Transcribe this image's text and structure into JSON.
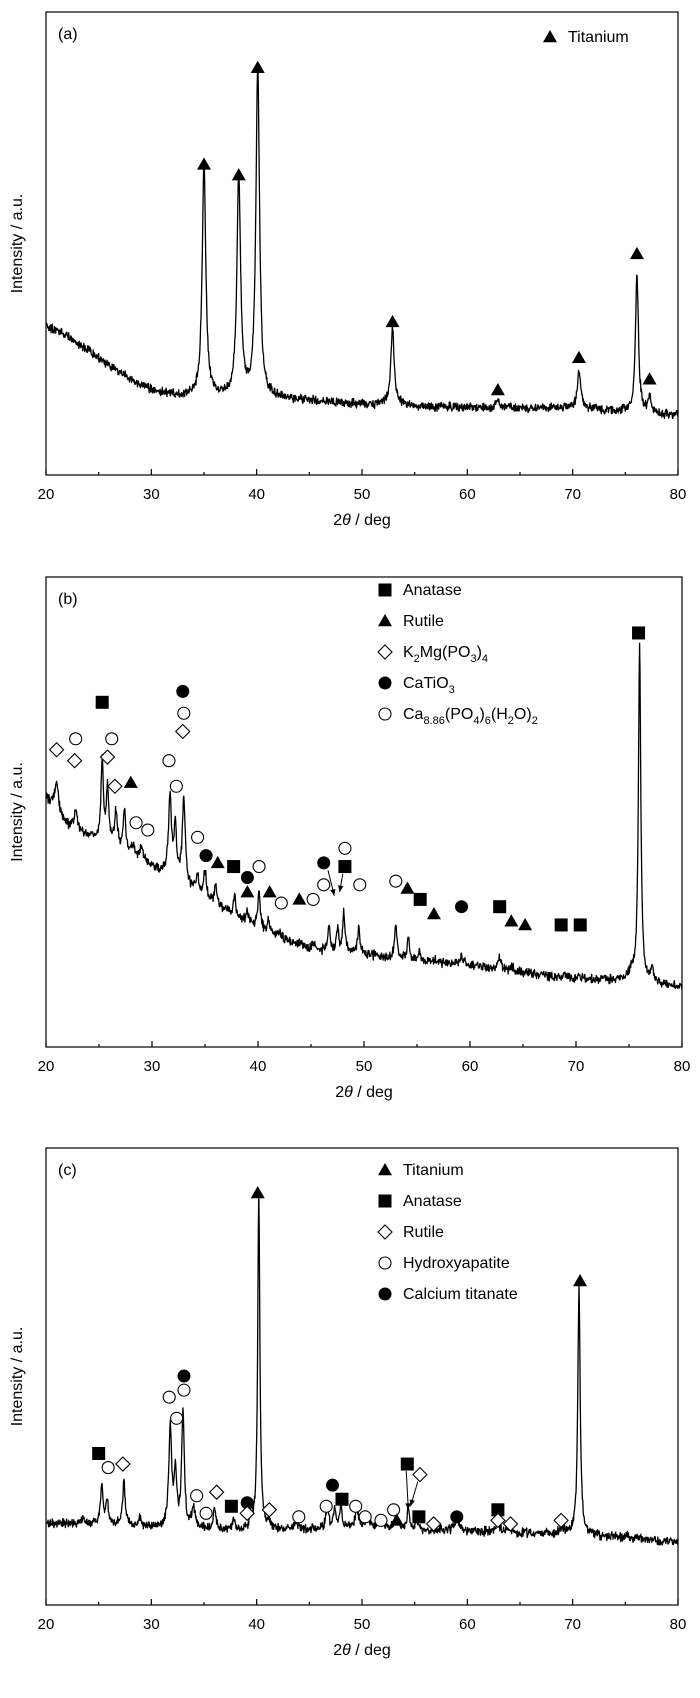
{
  "chart_data": [
    {
      "type": "line",
      "panel_label": "(a)",
      "xlabel_base": "2",
      "xlabel_var": "θ",
      "xlabel_unit": " / deg",
      "ylabel": "Intensity / a.u.",
      "xlim": [
        20,
        80
      ],
      "xticks": [
        "20",
        "30",
        "40",
        "50",
        "60",
        "70",
        "80"
      ],
      "legend": [
        {
          "marker": "filled-triangle",
          "label": "Titanium"
        }
      ],
      "baseline": [
        [
          20,
          0.25
        ],
        [
          22,
          0.22
        ],
        [
          25,
          0.16
        ],
        [
          28,
          0.1
        ],
        [
          30,
          0.07
        ],
        [
          33,
          0.05
        ],
        [
          40,
          0.05
        ],
        [
          50,
          0.03
        ],
        [
          60,
          0.02
        ],
        [
          70,
          0.02
        ],
        [
          80,
          0.0
        ]
      ],
      "peaks": [
        {
          "x": 35.0,
          "h": 0.65,
          "w": 0.3
        },
        {
          "x": 38.3,
          "h": 0.62,
          "w": 0.3
        },
        {
          "x": 40.1,
          "h": 0.92,
          "w": 0.3
        },
        {
          "x": 52.9,
          "h": 0.21,
          "w": 0.3
        },
        {
          "x": 62.9,
          "h": 0.02,
          "w": 0.3
        },
        {
          "x": 70.6,
          "h": 0.1,
          "w": 0.3
        },
        {
          "x": 76.1,
          "h": 0.39,
          "w": 0.25
        },
        {
          "x": 77.3,
          "h": 0.05,
          "w": 0.25
        }
      ],
      "markers": [
        {
          "x": 35.0,
          "y": 0.7,
          "m": "filled-triangle"
        },
        {
          "x": 38.3,
          "y": 0.67,
          "m": "filled-triangle"
        },
        {
          "x": 40.1,
          "y": 0.97,
          "m": "filled-triangle"
        },
        {
          "x": 52.9,
          "y": 0.26,
          "m": "filled-triangle"
        },
        {
          "x": 62.9,
          "y": 0.07,
          "m": "filled-triangle"
        },
        {
          "x": 70.6,
          "y": 0.16,
          "m": "filled-triangle"
        },
        {
          "x": 76.1,
          "y": 0.45,
          "m": "filled-triangle"
        },
        {
          "x": 77.3,
          "y": 0.1,
          "m": "filled-triangle"
        }
      ],
      "arrows": []
    },
    {
      "type": "line",
      "panel_label": "(b)",
      "xlabel_base": "2",
      "xlabel_var": "θ",
      "xlabel_unit": " / deg",
      "ylabel": "Intensity / a.u.",
      "xlim": [
        20,
        80
      ],
      "xticks": [
        "20",
        "30",
        "40",
        "50",
        "60",
        "70",
        "80"
      ],
      "legend": [
        {
          "marker": "filled-square",
          "label": "Anatase"
        },
        {
          "marker": "filled-triangle",
          "label": "Rutile"
        },
        {
          "marker": "open-diamond",
          "parts": [
            [
              "K",
              ""
            ],
            [
              "2",
              "sub"
            ],
            [
              "Mg(PO",
              ""
            ],
            [
              "3",
              "sub"
            ],
            [
              ")",
              ""
            ],
            [
              "4",
              "sub"
            ]
          ]
        },
        {
          "marker": "filled-circle",
          "parts": [
            [
              "CaTiO",
              ""
            ],
            [
              "3",
              "sub"
            ]
          ]
        },
        {
          "marker": "open-circle",
          "parts": [
            [
              "Ca",
              ""
            ],
            [
              "8.86",
              "sub"
            ],
            [
              "(PO",
              ""
            ],
            [
              "4",
              "sub"
            ],
            [
              ")",
              ""
            ],
            [
              "6",
              "sub"
            ],
            [
              "(H",
              ""
            ],
            [
              "2",
              "sub"
            ],
            [
              "O)",
              ""
            ],
            [
              "2",
              "sub"
            ]
          ]
        }
      ],
      "baseline": [
        [
          20,
          0.52
        ],
        [
          22,
          0.44
        ],
        [
          25,
          0.4
        ],
        [
          30,
          0.33
        ],
        [
          35,
          0.24
        ],
        [
          40,
          0.16
        ],
        [
          45,
          0.1
        ],
        [
          50,
          0.09
        ],
        [
          55,
          0.07
        ],
        [
          60,
          0.06
        ],
        [
          65,
          0.04
        ],
        [
          70,
          0.02
        ],
        [
          75,
          0.02
        ],
        [
          80,
          0.0
        ]
      ],
      "peaks": [
        {
          "x": 21.0,
          "h": 0.08,
          "w": 0.3
        },
        {
          "x": 22.8,
          "h": 0.05,
          "w": 0.3
        },
        {
          "x": 25.3,
          "h": 0.22,
          "w": 0.2
        },
        {
          "x": 25.8,
          "h": 0.15,
          "w": 0.2
        },
        {
          "x": 26.6,
          "h": 0.1,
          "w": 0.25
        },
        {
          "x": 27.4,
          "h": 0.12,
          "w": 0.2
        },
        {
          "x": 28.2,
          "h": 0.03,
          "w": 0.3
        },
        {
          "x": 29.0,
          "h": 0.03,
          "w": 0.3
        },
        {
          "x": 31.7,
          "h": 0.22,
          "w": 0.25
        },
        {
          "x": 32.2,
          "h": 0.14,
          "w": 0.2
        },
        {
          "x": 33.0,
          "h": 0.24,
          "w": 0.25
        },
        {
          "x": 34.3,
          "h": 0.05,
          "w": 0.25
        },
        {
          "x": 35.0,
          "h": 0.08,
          "w": 0.2
        },
        {
          "x": 36.0,
          "h": 0.06,
          "w": 0.2
        },
        {
          "x": 37.8,
          "h": 0.05,
          "w": 0.2
        },
        {
          "x": 39.0,
          "h": 0.03,
          "w": 0.2
        },
        {
          "x": 40.1,
          "h": 0.1,
          "w": 0.2
        },
        {
          "x": 41.0,
          "h": 0.03,
          "w": 0.2
        },
        {
          "x": 42.0,
          "h": 0.01,
          "w": 0.3
        },
        {
          "x": 44.0,
          "h": 0.01,
          "w": 0.3
        },
        {
          "x": 45.2,
          "h": 0.02,
          "w": 0.3
        },
        {
          "x": 46.7,
          "h": 0.07,
          "w": 0.2
        },
        {
          "x": 47.5,
          "h": 0.06,
          "w": 0.2
        },
        {
          "x": 48.1,
          "h": 0.11,
          "w": 0.2
        },
        {
          "x": 49.5,
          "h": 0.07,
          "w": 0.2
        },
        {
          "x": 53.0,
          "h": 0.09,
          "w": 0.2
        },
        {
          "x": 54.2,
          "h": 0.06,
          "w": 0.2
        },
        {
          "x": 55.2,
          "h": 0.03,
          "w": 0.2
        },
        {
          "x": 56.8,
          "h": 0.01,
          "w": 0.3
        },
        {
          "x": 59.2,
          "h": 0.02,
          "w": 0.3
        },
        {
          "x": 62.8,
          "h": 0.03,
          "w": 0.3
        },
        {
          "x": 64.0,
          "h": 0.01,
          "w": 0.3
        },
        {
          "x": 69.0,
          "h": 0.01,
          "w": 0.3
        },
        {
          "x": 70.3,
          "h": 0.01,
          "w": 0.3
        },
        {
          "x": 75.2,
          "h": 0.02,
          "w": 0.3
        },
        {
          "x": 76.0,
          "h": 0.92,
          "w": 0.2
        },
        {
          "x": 77.2,
          "h": 0.04,
          "w": 0.2
        }
      ],
      "markers": [
        {
          "x": 21.0,
          "y": 0.65,
          "m": "open-diamond"
        },
        {
          "x": 22.7,
          "y": 0.62,
          "m": "open-diamond"
        },
        {
          "x": 22.8,
          "y": 0.68,
          "m": "open-circle"
        },
        {
          "x": 25.3,
          "y": 0.78,
          "m": "filled-square"
        },
        {
          "x": 25.8,
          "y": 0.63,
          "m": "open-diamond"
        },
        {
          "x": 26.2,
          "y": 0.68,
          "m": "open-circle"
        },
        {
          "x": 26.5,
          "y": 0.55,
          "m": "open-diamond"
        },
        {
          "x": 28.0,
          "y": 0.56,
          "m": "filled-triangle"
        },
        {
          "x": 28.5,
          "y": 0.45,
          "m": "open-circle"
        },
        {
          "x": 29.6,
          "y": 0.43,
          "m": "open-circle"
        },
        {
          "x": 31.6,
          "y": 0.62,
          "m": "open-circle"
        },
        {
          "x": 32.3,
          "y": 0.55,
          "m": "open-circle"
        },
        {
          "x": 32.9,
          "y": 0.81,
          "m": "filled-circle"
        },
        {
          "x": 33.0,
          "y": 0.75,
          "m": "open-circle"
        },
        {
          "x": 32.9,
          "y": 0.7,
          "m": "open-diamond"
        },
        {
          "x": 34.3,
          "y": 0.41,
          "m": "open-circle"
        },
        {
          "x": 35.1,
          "y": 0.36,
          "m": "filled-circle"
        },
        {
          "x": 36.2,
          "y": 0.34,
          "m": "filled-triangle"
        },
        {
          "x": 37.7,
          "y": 0.33,
          "m": "filled-square"
        },
        {
          "x": 39.0,
          "y": 0.3,
          "m": "filled-circle"
        },
        {
          "x": 40.1,
          "y": 0.33,
          "m": "open-circle"
        },
        {
          "x": 39.0,
          "y": 0.26,
          "m": "filled-triangle"
        },
        {
          "x": 41.1,
          "y": 0.26,
          "m": "filled-triangle"
        },
        {
          "x": 42.2,
          "y": 0.23,
          "m": "open-circle"
        },
        {
          "x": 43.9,
          "y": 0.24,
          "m": "filled-triangle"
        },
        {
          "x": 45.2,
          "y": 0.24,
          "m": "open-circle"
        },
        {
          "x": 46.2,
          "y": 0.34,
          "m": "filled-circle"
        },
        {
          "x": 46.2,
          "y": 0.28,
          "m": "open-circle"
        },
        {
          "x": 48.2,
          "y": 0.33,
          "m": "filled-square"
        },
        {
          "x": 48.2,
          "y": 0.38,
          "m": "open-circle"
        },
        {
          "x": 49.6,
          "y": 0.28,
          "m": "open-circle"
        },
        {
          "x": 53.0,
          "y": 0.29,
          "m": "open-circle"
        },
        {
          "x": 54.1,
          "y": 0.27,
          "m": "filled-triangle"
        },
        {
          "x": 55.3,
          "y": 0.24,
          "m": "filled-square"
        },
        {
          "x": 56.6,
          "y": 0.2,
          "m": "filled-triangle"
        },
        {
          "x": 59.2,
          "y": 0.22,
          "m": "filled-circle"
        },
        {
          "x": 62.8,
          "y": 0.22,
          "m": "filled-square"
        },
        {
          "x": 63.9,
          "y": 0.18,
          "m": "filled-triangle"
        },
        {
          "x": 65.2,
          "y": 0.17,
          "m": "filled-triangle"
        },
        {
          "x": 68.6,
          "y": 0.17,
          "m": "filled-square"
        },
        {
          "x": 70.4,
          "y": 0.17,
          "m": "filled-square"
        },
        {
          "x": 75.9,
          "y": 0.97,
          "m": "filled-square"
        }
      ],
      "arrows": [
        {
          "x1": 46.6,
          "y1": 0.32,
          "x2": 47.2,
          "y2": 0.25
        },
        {
          "x1": 48.0,
          "y1": 0.31,
          "x2": 47.7,
          "y2": 0.26
        }
      ]
    },
    {
      "type": "line",
      "panel_label": "(c)",
      "xlabel_base": "2",
      "xlabel_var": "θ",
      "xlabel_unit": " / deg",
      "ylabel": "Intensity / a.u.",
      "xlim": [
        20,
        80
      ],
      "xticks": [
        "20",
        "30",
        "40",
        "50",
        "60",
        "70",
        "80"
      ],
      "legend": [
        {
          "marker": "filled-triangle",
          "label": "Titanium"
        },
        {
          "marker": "filled-square",
          "label": "Anatase"
        },
        {
          "marker": "open-diamond",
          "label": "Rutile"
        },
        {
          "marker": "open-circle",
          "label": "Hydroxyapatite"
        },
        {
          "marker": "filled-circle",
          "label": "Calcium titanate"
        }
      ],
      "baseline": [
        [
          20,
          0.06
        ],
        [
          25,
          0.06
        ],
        [
          30,
          0.05
        ],
        [
          40,
          0.04
        ],
        [
          50,
          0.05
        ],
        [
          60,
          0.04
        ],
        [
          70,
          0.03
        ],
        [
          80,
          0.01
        ]
      ],
      "peaks": [
        {
          "x": 23.5,
          "h": 0.01,
          "w": 0.3
        },
        {
          "x": 25.3,
          "h": 0.12,
          "w": 0.2
        },
        {
          "x": 25.8,
          "h": 0.07,
          "w": 0.2
        },
        {
          "x": 27.4,
          "h": 0.13,
          "w": 0.2
        },
        {
          "x": 28.9,
          "h": 0.02,
          "w": 0.3
        },
        {
          "x": 31.8,
          "h": 0.28,
          "w": 0.25
        },
        {
          "x": 32.3,
          "h": 0.15,
          "w": 0.2
        },
        {
          "x": 33.0,
          "h": 0.33,
          "w": 0.22
        },
        {
          "x": 34.0,
          "h": 0.06,
          "w": 0.25
        },
        {
          "x": 36.0,
          "h": 0.06,
          "w": 0.2
        },
        {
          "x": 37.8,
          "h": 0.03,
          "w": 0.2
        },
        {
          "x": 39.5,
          "h": 0.04,
          "w": 0.2
        },
        {
          "x": 40.2,
          "h": 0.96,
          "w": 0.18
        },
        {
          "x": 41.2,
          "h": 0.02,
          "w": 0.3
        },
        {
          "x": 43.8,
          "h": 0.02,
          "w": 0.3
        },
        {
          "x": 46.7,
          "h": 0.07,
          "w": 0.2
        },
        {
          "x": 47.4,
          "h": 0.05,
          "w": 0.2
        },
        {
          "x": 48.0,
          "h": 0.06,
          "w": 0.2
        },
        {
          "x": 49.5,
          "h": 0.07,
          "w": 0.2
        },
        {
          "x": 50.5,
          "h": 0.03,
          "w": 0.3
        },
        {
          "x": 51.8,
          "h": 0.03,
          "w": 0.3
        },
        {
          "x": 53.2,
          "h": 0.04,
          "w": 0.2
        },
        {
          "x": 54.4,
          "h": 0.06,
          "w": 0.2
        },
        {
          "x": 55.2,
          "h": 0.03,
          "w": 0.2
        },
        {
          "x": 59.0,
          "h": 0.04,
          "w": 0.3
        },
        {
          "x": 62.9,
          "h": 0.03,
          "w": 0.3
        },
        {
          "x": 64.0,
          "h": 0.01,
          "w": 0.3
        },
        {
          "x": 69.0,
          "h": 0.02,
          "w": 0.3
        },
        {
          "x": 70.6,
          "h": 0.7,
          "w": 0.2
        },
        {
          "x": 75.2,
          "h": 0.01,
          "w": 0.3
        }
      ],
      "markers": [
        {
          "x": 25.0,
          "y": 0.26,
          "m": "filled-square"
        },
        {
          "x": 25.9,
          "y": 0.22,
          "m": "open-circle"
        },
        {
          "x": 27.3,
          "y": 0.23,
          "m": "open-diamond"
        },
        {
          "x": 31.7,
          "y": 0.42,
          "m": "open-circle"
        },
        {
          "x": 32.4,
          "y": 0.36,
          "m": "open-circle"
        },
        {
          "x": 33.1,
          "y": 0.44,
          "m": "open-circle"
        },
        {
          "x": 33.1,
          "y": 0.48,
          "m": "filled-circle"
        },
        {
          "x": 34.3,
          "y": 0.14,
          "m": "open-circle"
        },
        {
          "x": 35.2,
          "y": 0.09,
          "m": "open-circle"
        },
        {
          "x": 36.2,
          "y": 0.15,
          "m": "open-diamond"
        },
        {
          "x": 37.6,
          "y": 0.11,
          "m": "filled-square"
        },
        {
          "x": 39.1,
          "y": 0.12,
          "m": "filled-circle"
        },
        {
          "x": 39.1,
          "y": 0.09,
          "m": "open-diamond"
        },
        {
          "x": 41.2,
          "y": 0.1,
          "m": "open-diamond"
        },
        {
          "x": 44.0,
          "y": 0.08,
          "m": "open-circle"
        },
        {
          "x": 40.1,
          "y": 1.0,
          "m": "filled-triangle"
        },
        {
          "x": 46.6,
          "y": 0.11,
          "m": "open-circle"
        },
        {
          "x": 47.2,
          "y": 0.17,
          "m": "filled-circle"
        },
        {
          "x": 48.1,
          "y": 0.13,
          "m": "filled-square"
        },
        {
          "x": 49.4,
          "y": 0.11,
          "m": "open-circle"
        },
        {
          "x": 50.3,
          "y": 0.08,
          "m": "open-circle"
        },
        {
          "x": 51.8,
          "y": 0.07,
          "m": "open-circle"
        },
        {
          "x": 53.0,
          "y": 0.1,
          "m": "open-circle"
        },
        {
          "x": 53.3,
          "y": 0.07,
          "m": "filled-triangle"
        },
        {
          "x": 54.3,
          "y": 0.23,
          "m": "filled-square"
        },
        {
          "x": 55.4,
          "y": 0.08,
          "m": "filled-square"
        },
        {
          "x": 55.5,
          "y": 0.2,
          "m": "open-diamond"
        },
        {
          "x": 56.8,
          "y": 0.06,
          "m": "open-diamond"
        },
        {
          "x": 59.0,
          "y": 0.08,
          "m": "filled-circle"
        },
        {
          "x": 62.9,
          "y": 0.1,
          "m": "filled-square"
        },
        {
          "x": 62.9,
          "y": 0.07,
          "m": "open-diamond"
        },
        {
          "x": 64.1,
          "y": 0.06,
          "m": "open-diamond"
        },
        {
          "x": 68.9,
          "y": 0.07,
          "m": "open-diamond"
        },
        {
          "x": 70.7,
          "y": 0.75,
          "m": "filled-triangle"
        }
      ],
      "arrows": [
        {
          "x1": 54.2,
          "y1": 0.21,
          "x2": 54.4,
          "y2": 0.1
        },
        {
          "x1": 55.3,
          "y1": 0.18,
          "x2": 54.6,
          "y2": 0.11
        }
      ]
    }
  ]
}
